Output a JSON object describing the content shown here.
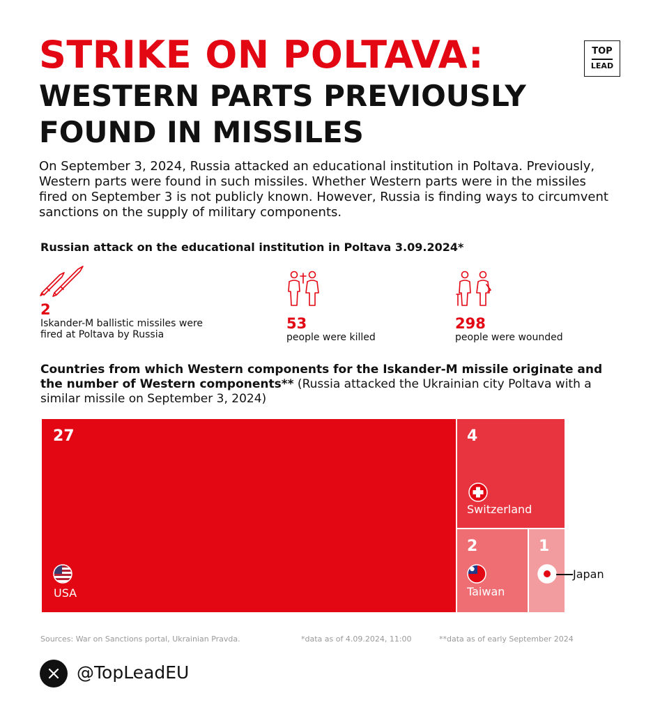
{
  "header": {
    "title_line1": "STRIKE ON POLTAVA:",
    "title_line2": "WESTERN PARTS PREVIOUSLY",
    "title_line3": "FOUND IN MISSILES"
  },
  "logo": {
    "line1": "TOP",
    "line2": "LEAD"
  },
  "intro": "On September 3, 2024, Russia attacked an educational institution in Poltava. Previously, Western parts were found in such missiles. Whether Western parts were in the missiles fired on September 3 is not publicly known. However, Russia is finding ways to circumvent sanctions on the supply of military components.",
  "attack": {
    "heading": "Russian attack on the educational institution in Poltava 3.09.2024*",
    "stats": [
      {
        "value": "2",
        "desc_line1": "Iskander-M ballistic missiles were",
        "desc_line2": "fired at Poltava by Russia",
        "icon": "missiles-icon"
      },
      {
        "value": "53",
        "desc_line1": "people were killed",
        "desc_line2": "",
        "icon": "people-killed-icon"
      },
      {
        "value": "298",
        "desc_line1": "people were wounded",
        "desc_line2": "",
        "icon": "people-wounded-icon"
      }
    ]
  },
  "components": {
    "heading_bold": "Countries from which Western components for the Iskander-M missile originate and the number of Western components**",
    "heading_light": " (Russia attacked the Ukrainian city Poltava with a similar missile on September 3, 2024)"
  },
  "chart_data": {
    "type": "treemap",
    "title": "Countries from which Western components for the Iskander-M missile originate and the number of Western components**",
    "categories": [
      "USA",
      "Switzerland",
      "Taiwan",
      "Japan"
    ],
    "values": [
      27,
      4,
      2,
      1
    ],
    "colors": [
      "#e30613",
      "#e8343f",
      "#ee6e73",
      "#f39ca0"
    ],
    "icons": [
      "us-flag-icon",
      "swiss-flag-icon",
      "taiwan-flag-icon",
      "japan-flag-icon"
    ]
  },
  "footer": {
    "sources": "Sources: War on Sanctions portal, Ukrainian Pravda.",
    "note1": "*data as of 4.09.2024, 11:00",
    "note2": "**data as of early September 2024"
  },
  "social": {
    "handle": "@TopLeadEU",
    "icon": "x-logo-icon"
  },
  "colors": {
    "accent": "#e30613",
    "text": "#111111",
    "muted": "#999999"
  }
}
